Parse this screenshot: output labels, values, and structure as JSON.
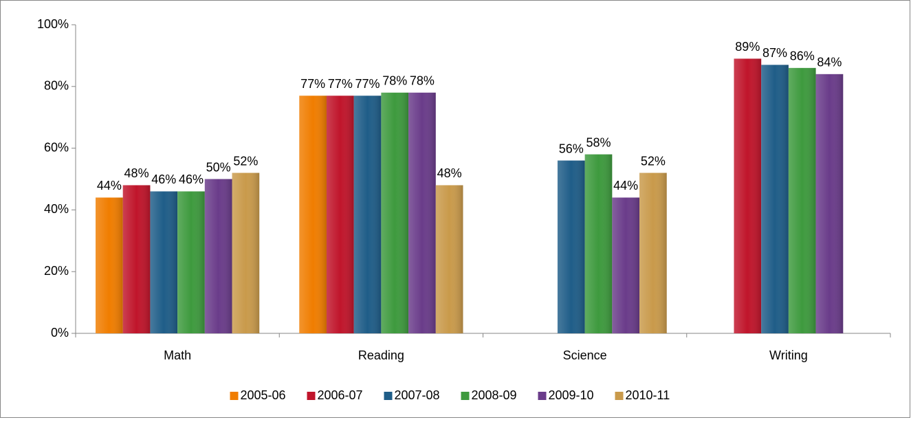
{
  "chart_data": {
    "type": "bar",
    "categories": [
      "Math",
      "Reading",
      "Science",
      "Writing"
    ],
    "series": [
      {
        "name": "2005-06",
        "color": "#f07d00",
        "values": [
          44,
          77,
          null,
          null
        ],
        "value_labels": [
          "44%",
          "77%",
          null,
          null
        ]
      },
      {
        "name": "2006-07",
        "color": "#c0152b",
        "values": [
          48,
          77,
          null,
          89
        ],
        "value_labels": [
          "48%",
          "77%",
          null,
          "89%"
        ]
      },
      {
        "name": "2007-08",
        "color": "#1f5d88",
        "values": [
          46,
          77,
          56,
          87
        ],
        "value_labels": [
          "46%",
          "77%",
          "56%",
          "87%"
        ]
      },
      {
        "name": "2008-09",
        "color": "#3e9a3e",
        "values": [
          46,
          78,
          58,
          86
        ],
        "value_labels": [
          "46%",
          "78%",
          "58%",
          "86%"
        ]
      },
      {
        "name": "2009-10",
        "color": "#6a3c8a",
        "values": [
          50,
          78,
          44,
          84
        ],
        "value_labels": [
          "50%",
          "78%",
          "44%",
          "84%"
        ]
      },
      {
        "name": "2010-11",
        "color": "#c99a4b",
        "values": [
          52,
          48,
          52,
          null
        ],
        "value_labels": [
          "52%",
          "48%",
          "52%",
          null
        ]
      }
    ],
    "ylim": [
      0,
      100
    ],
    "yticks": [
      {
        "value": 0,
        "label": "0%"
      },
      {
        "value": 20,
        "label": "20%"
      },
      {
        "value": 40,
        "label": "40%"
      },
      {
        "value": 60,
        "label": "60%"
      },
      {
        "value": 80,
        "label": "80%"
      },
      {
        "value": 100,
        "label": "100%"
      }
    ],
    "legend": "bottom"
  }
}
